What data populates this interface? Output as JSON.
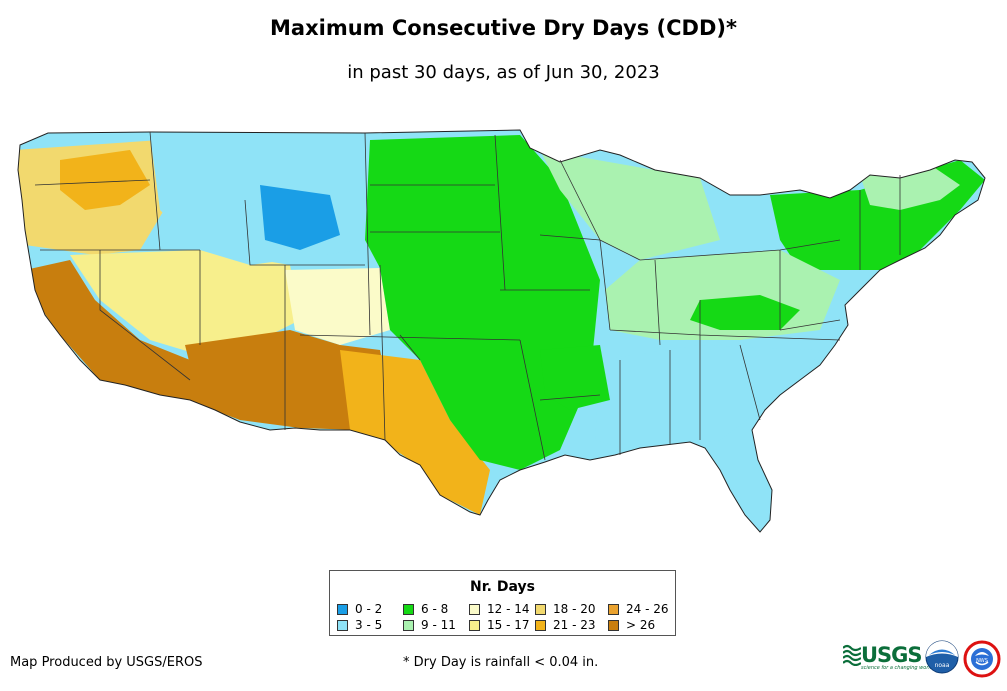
{
  "title": "Maximum Consecutive Dry Days (CDD)*",
  "subtitle": "in past 30 days, as of Jun 30, 2023",
  "legend": {
    "title": "Nr. Days",
    "items": [
      {
        "label": "0 - 2",
        "color": "#1a9ee6"
      },
      {
        "label": "3 - 5",
        "color": "#8fe3f7"
      },
      {
        "label": "6 - 8",
        "color": "#15d915"
      },
      {
        "label": "9 - 11",
        "color": "#aaf2b0"
      },
      {
        "label": "12 - 14",
        "color": "#fbfbc9"
      },
      {
        "label": "15 - 17",
        "color": "#f7ef8c"
      },
      {
        "label": "18 - 20",
        "color": "#f2d96e"
      },
      {
        "label": "21 - 23",
        "color": "#f2b31a"
      },
      {
        "label": "24 - 26",
        "color": "#eaa22e"
      },
      {
        "label": "> 26",
        "color": "#c87e0e"
      }
    ]
  },
  "footer": {
    "producer": "Map Produced by USGS/EROS",
    "note": "* Dry Day is rainfall < 0.04 in."
  },
  "logos": {
    "usgs": "USGS",
    "usgs_tagline": "science for a changing world",
    "noaa": "noaa",
    "nws": "NWS"
  },
  "map_regions": [
    {
      "name": "pacific-northwest",
      "color": "#f2d96e"
    },
    {
      "name": "california-coast",
      "color": "#c87e0e"
    },
    {
      "name": "great-basin",
      "color": "#f7ef8c"
    },
    {
      "name": "southwest-desert",
      "color": "#c87e0e"
    },
    {
      "name": "northern-rockies",
      "color": "#8fe3f7"
    },
    {
      "name": "wyoming-core",
      "color": "#1a9ee6"
    },
    {
      "name": "colorado-plateau",
      "color": "#fbfbc9"
    },
    {
      "name": "texas-south",
      "color": "#f2b31a"
    },
    {
      "name": "central-plains",
      "color": "#15d915"
    },
    {
      "name": "upper-midwest",
      "color": "#aaf2b0"
    },
    {
      "name": "northeast",
      "color": "#15d915"
    },
    {
      "name": "southeast",
      "color": "#8fe3f7"
    },
    {
      "name": "ohio-valley",
      "color": "#aaf2b0"
    },
    {
      "name": "florida",
      "color": "#8fe3f7"
    }
  ]
}
